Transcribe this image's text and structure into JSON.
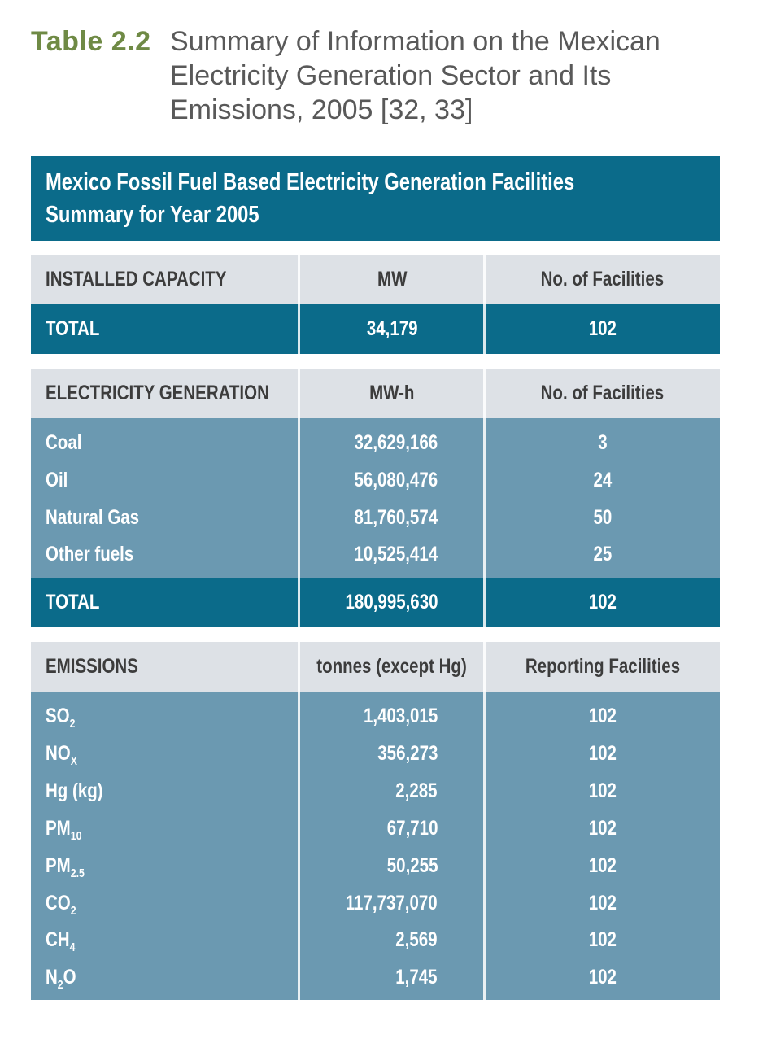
{
  "caption": {
    "number": "Table 2.2",
    "text": "Summary of Information on the Mexican Electricity Generation Sector and Its Emissions, 2005 [32, 33]"
  },
  "table": {
    "title_line1": "Mexico Fossil Fuel Based Electricity Generation Facilities",
    "title_line2": "Summary for Year 2005",
    "capacity": {
      "header": [
        "INSTALLED CAPACITY",
        "MW",
        "No. of Facilities"
      ],
      "total": [
        "TOTAL",
        "34,179",
        "102"
      ]
    },
    "generation": {
      "header": [
        "ELECTRICITY GENERATION",
        "MW-h",
        "No. of Facilities"
      ],
      "rows": [
        {
          "label": "Coal",
          "value": "32,629,166",
          "count": "3"
        },
        {
          "label": "Oil",
          "value": "56,080,476",
          "count": "24"
        },
        {
          "label": "Natural Gas",
          "value": "81,760,574",
          "count": "50"
        },
        {
          "label": "Other fuels",
          "value": "10,525,414",
          "count": "25"
        }
      ],
      "total": [
        "TOTAL",
        "180,995,630",
        "102"
      ]
    },
    "emissions": {
      "header": [
        "EMISSIONS",
        "tonnes (except Hg)",
        "Reporting Facilities"
      ],
      "rows": [
        {
          "base": "SO",
          "sub": "2",
          "tail": "",
          "value": "1,403,015",
          "count": "102"
        },
        {
          "base": "NO",
          "sub": "X",
          "tail": "",
          "value": "356,273",
          "count": "102"
        },
        {
          "base": "Hg (kg)",
          "sub": "",
          "tail": "",
          "value": "2,285",
          "count": "102"
        },
        {
          "base": "PM",
          "sub": "10",
          "tail": "",
          "value": "67,710",
          "count": "102"
        },
        {
          "base": "PM",
          "sub": "2.5",
          "tail": "",
          "value": "50,255",
          "count": "102"
        },
        {
          "base": "CO",
          "sub": "2",
          "tail": "",
          "value": "117,737,070",
          "count": "102"
        },
        {
          "base": "CH",
          "sub": "4",
          "tail": "",
          "value": "2,569",
          "count": "102"
        },
        {
          "base": "N",
          "sub": "2",
          "tail": "O",
          "value": "1,745",
          "count": "102"
        }
      ]
    }
  }
}
